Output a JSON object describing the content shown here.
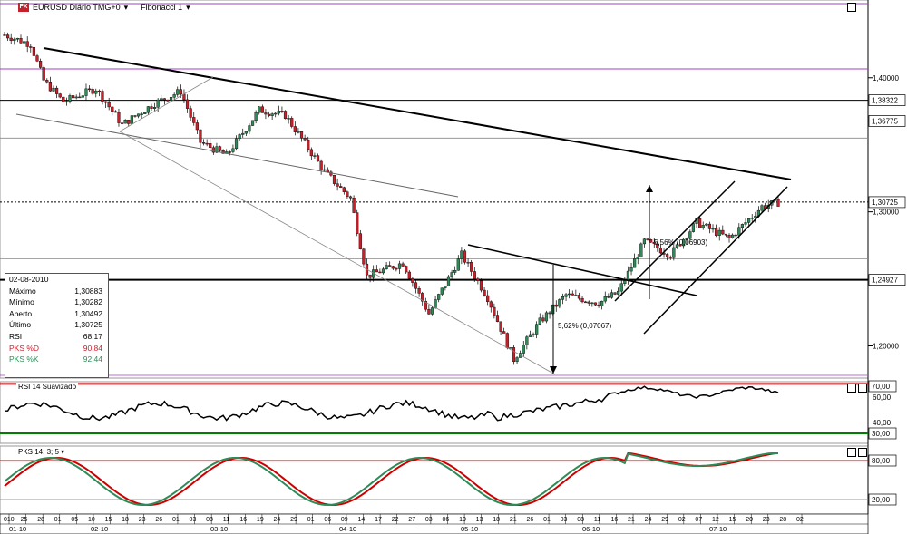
{
  "header": {
    "title": "EURUSD Diário TMG+0",
    "drawing_tool": "Fibonacci 1",
    "icon": "fx-icon"
  },
  "chart_data": [
    {
      "type": "candlestick",
      "title": "EURUSD Diário TMG+0",
      "y_ticks": [
        "1,40000",
        "1,30000",
        "1,20000"
      ],
      "price_labels": [
        "1,38322",
        "1,36775",
        "1,30725",
        "1,24927"
      ],
      "x_ticks": [
        "010",
        "25",
        "28",
        "01",
        "05",
        "10",
        "15",
        "18",
        "23",
        "26",
        "01",
        "03",
        "08",
        "11",
        "16",
        "19",
        "24",
        "29",
        "01",
        "06",
        "09",
        "14",
        "17",
        "22",
        "27",
        "03",
        "06",
        "10",
        "13",
        "18",
        "21",
        "26",
        "01",
        "03",
        "08",
        "11",
        "16",
        "21",
        "24",
        "29",
        "02",
        "07",
        "12",
        "15",
        "20",
        "23",
        "28",
        "02"
      ],
      "months": [
        "01-10",
        "02-10",
        "03-10",
        "04-10",
        "05-10",
        "06-10",
        "07-10"
      ],
      "annotations": [
        "5,56% (0,06903)",
        "5,62% (0,07067)"
      ],
      "last_close": "1,30725",
      "ylim": [
        1.176,
        1.458
      ],
      "trend_line_price": 1.30725
    },
    {
      "type": "line",
      "title": "RSI 14 Suavizado",
      "y_ticks": [
        "60,00",
        "40,00"
      ],
      "levels": [
        "70,00",
        "30,00"
      ],
      "last_value": "68,17"
    },
    {
      "type": "line",
      "title": "PKS 14; 3; 5",
      "y_ticks": [
        "80,00",
        "20,00"
      ],
      "series": [
        {
          "name": "PKS %D",
          "color": "#cc0000",
          "last": "90,84"
        },
        {
          "name": "PKS %K",
          "color": "#2e8b57",
          "last": "92,44"
        }
      ]
    }
  ],
  "info_panel": {
    "date": "02-08-2010",
    "rows": [
      {
        "label": "Máximo",
        "value": "1,30883"
      },
      {
        "label": "Mínimo",
        "value": "1,30282"
      },
      {
        "label": "Aberto",
        "value": "1,30492"
      },
      {
        "label": "Último",
        "value": "1,30725"
      },
      {
        "label": "RSI",
        "value": "68,17"
      },
      {
        "label": "PKS %D",
        "value": "90,84"
      },
      {
        "label": "PKS %K",
        "value": "92,44"
      }
    ]
  },
  "colors": {
    "up": "#2e8b57",
    "down": "#c8202a",
    "rsi_upper": "#cc0000",
    "rsi_lower": "#008000",
    "fib_purple": "#a040c0"
  }
}
